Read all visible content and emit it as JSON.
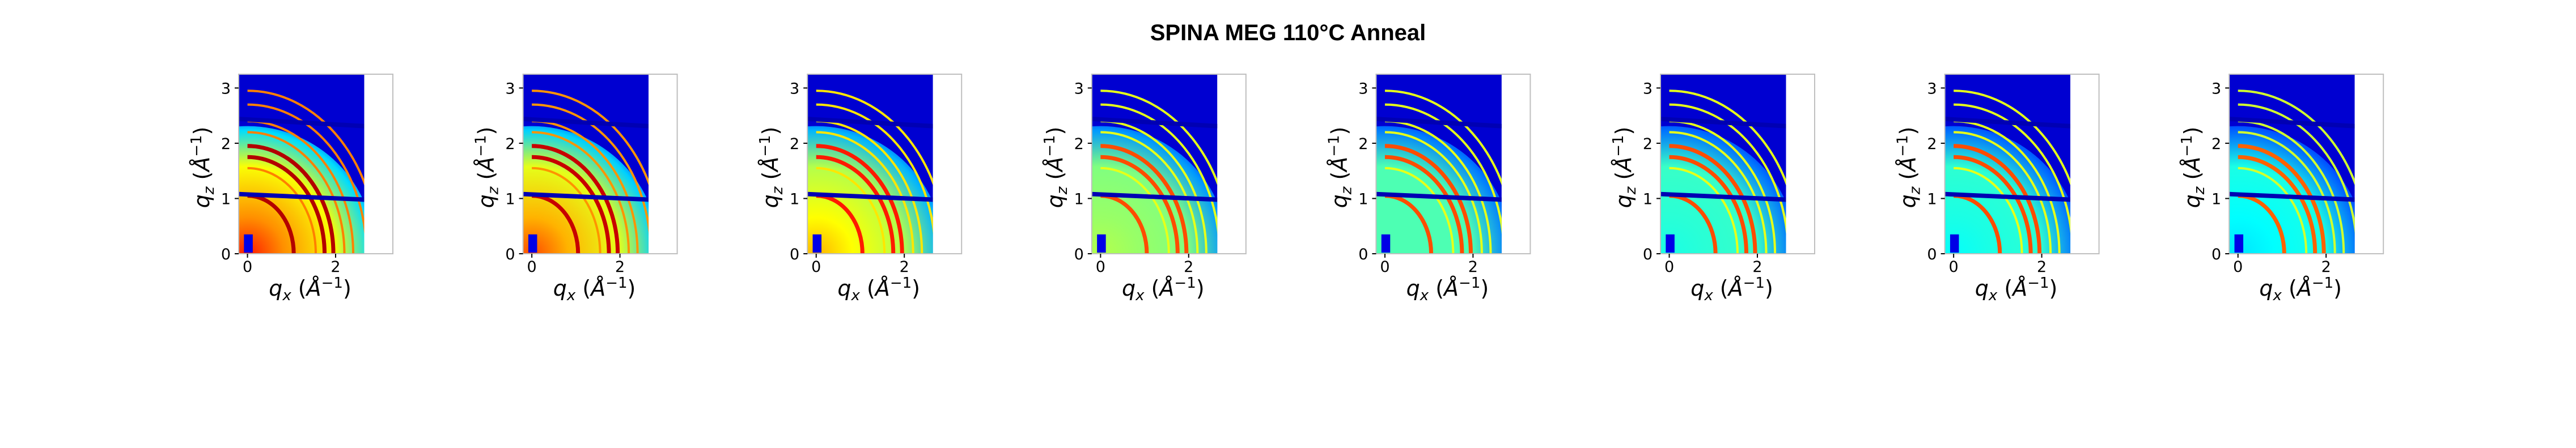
{
  "chart_data": {
    "type": "heatmap",
    "title": "SPINA MEG 110°C Anneal",
    "panel_count": 8,
    "xlabel": "q_x (Å^-1)",
    "ylabel": "q_z (Å^-1)",
    "xlim": [
      -0.2,
      3.3
    ],
    "ylim": [
      0,
      3.25
    ],
    "image_extent_x": [
      -0.2,
      2.65
    ],
    "image_extent_y": [
      0,
      3.25
    ],
    "x_ticks": [
      0,
      2
    ],
    "y_ticks": [
      0,
      1,
      2,
      3
    ],
    "colormap": "jet",
    "grid": false,
    "ring_radii": [
      1.05,
      1.55,
      1.75,
      1.95,
      2.2,
      2.4,
      2.7,
      2.95
    ],
    "panels": [
      {
        "bg_level": 0.62,
        "center_level": 0.85,
        "ring_intensity": 0.95
      },
      {
        "bg_level": 0.6,
        "center_level": 0.8,
        "ring_intensity": 0.93
      },
      {
        "bg_level": 0.55,
        "center_level": 0.7,
        "ring_intensity": 0.85
      },
      {
        "bg_level": 0.5,
        "center_level": 0.55,
        "ring_intensity": 0.8
      },
      {
        "bg_level": 0.45,
        "center_level": 0.45,
        "ring_intensity": 0.8
      },
      {
        "bg_level": 0.43,
        "center_level": 0.4,
        "ring_intensity": 0.8
      },
      {
        "bg_level": 0.42,
        "center_level": 0.38,
        "ring_intensity": 0.8
      },
      {
        "bg_level": 0.4,
        "center_level": 0.35,
        "ring_intensity": 0.78
      }
    ]
  }
}
